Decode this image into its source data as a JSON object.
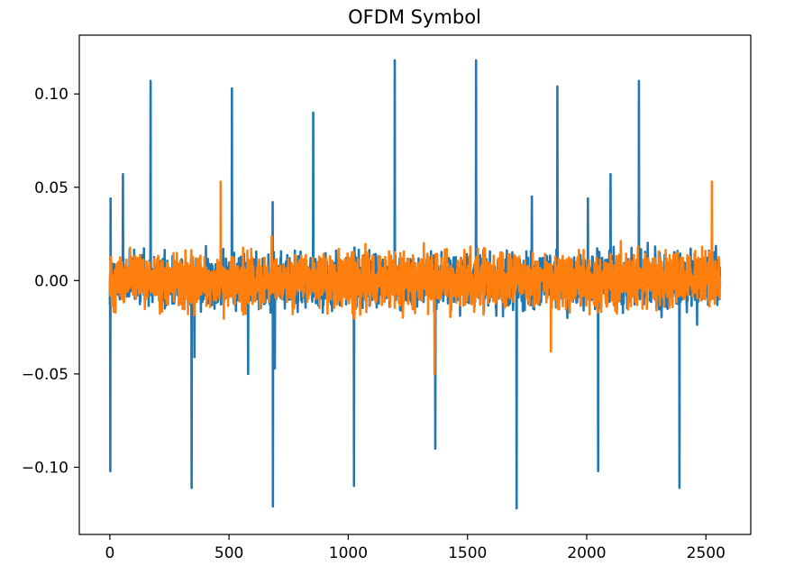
{
  "chart_data": {
    "type": "line",
    "title": "OFDM Symbol",
    "xlabel": "",
    "ylabel": "",
    "xlim": [
      -128,
      2688
    ],
    "ylim": [
      -0.136,
      0.1315
    ],
    "x_ticks": [
      0,
      500,
      1000,
      1500,
      2000,
      2500
    ],
    "x_tick_labels": [
      "0",
      "500",
      "1000",
      "1500",
      "2000",
      "2500"
    ],
    "y_ticks": [
      -0.1,
      -0.05,
      0.0,
      0.05,
      0.1
    ],
    "y_tick_labels": [
      "−0.10",
      "−0.05",
      "0.00",
      "0.05",
      "0.10"
    ],
    "sample_count": 2560,
    "grid": false,
    "legend": "none",
    "colors": {
      "series_1": "#1f77b4",
      "series_2": "#ff7f0e"
    },
    "series": [
      {
        "name": "series-1",
        "color": "#1f77b4",
        "noise_band": [
          -0.022,
          0.022
        ],
        "spikes": [
          {
            "x": 2,
            "y": -0.102
          },
          {
            "x": 3,
            "y": 0.044
          },
          {
            "x": 55,
            "y": 0.057
          },
          {
            "x": 171,
            "y": 0.107
          },
          {
            "x": 343,
            "y": -0.111
          },
          {
            "x": 355,
            "y": -0.041
          },
          {
            "x": 512,
            "y": 0.103
          },
          {
            "x": 580,
            "y": -0.05
          },
          {
            "x": 683,
            "y": 0.042
          },
          {
            "x": 684,
            "y": -0.121
          },
          {
            "x": 692,
            "y": -0.047
          },
          {
            "x": 853,
            "y": 0.09
          },
          {
            "x": 1024,
            "y": -0.11
          },
          {
            "x": 1195,
            "y": 0.118
          },
          {
            "x": 1365,
            "y": -0.09
          },
          {
            "x": 1536,
            "y": 0.118
          },
          {
            "x": 1706,
            "y": -0.122
          },
          {
            "x": 1770,
            "y": 0.045
          },
          {
            "x": 1877,
            "y": 0.104
          },
          {
            "x": 2005,
            "y": 0.044
          },
          {
            "x": 2048,
            "y": -0.102
          },
          {
            "x": 2100,
            "y": 0.057
          },
          {
            "x": 2219,
            "y": 0.107
          },
          {
            "x": 2389,
            "y": -0.111
          }
        ]
      },
      {
        "name": "series-2",
        "color": "#ff7f0e",
        "noise_band": [
          -0.022,
          0.022
        ],
        "spikes": [
          {
            "x": 465,
            "y": 0.053
          },
          {
            "x": 1362,
            "y": -0.05
          },
          {
            "x": 1850,
            "y": -0.038
          },
          {
            "x": 2525,
            "y": 0.053
          }
        ]
      }
    ]
  }
}
